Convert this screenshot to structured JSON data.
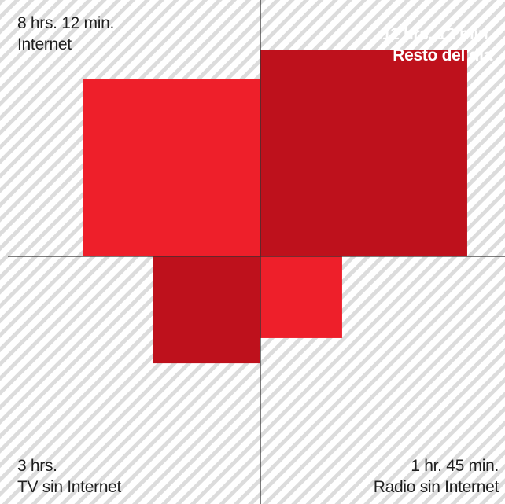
{
  "colors": {
    "background": "#ffffff",
    "hatch": "#dcdcdc",
    "axis": "#333333",
    "bright_red": "#ee1f2a",
    "dark_red": "#be111c"
  },
  "chart_data": {
    "type": "area",
    "unit": "minutes",
    "quadrants": [
      {
        "position": "top-left",
        "value_label": "8 hrs. 12 min.",
        "name": "Internet",
        "minutes": 492,
        "color": "#ee1f2a"
      },
      {
        "position": "top-right",
        "value_label": "11 hrs. 12 min.",
        "name": "Resto del día",
        "minutes": 672,
        "color": "#be111c"
      },
      {
        "position": "bottom-left",
        "value_label": "3 hrs.",
        "name": "TV sin Internet",
        "minutes": 180,
        "color": "#be111c"
      },
      {
        "position": "bottom-right",
        "value_label": "1 hr. 45 min.",
        "name": "Radio sin Internet",
        "minutes": 105,
        "color": "#ee1f2a"
      }
    ],
    "grid": false,
    "hatched_background": true
  }
}
